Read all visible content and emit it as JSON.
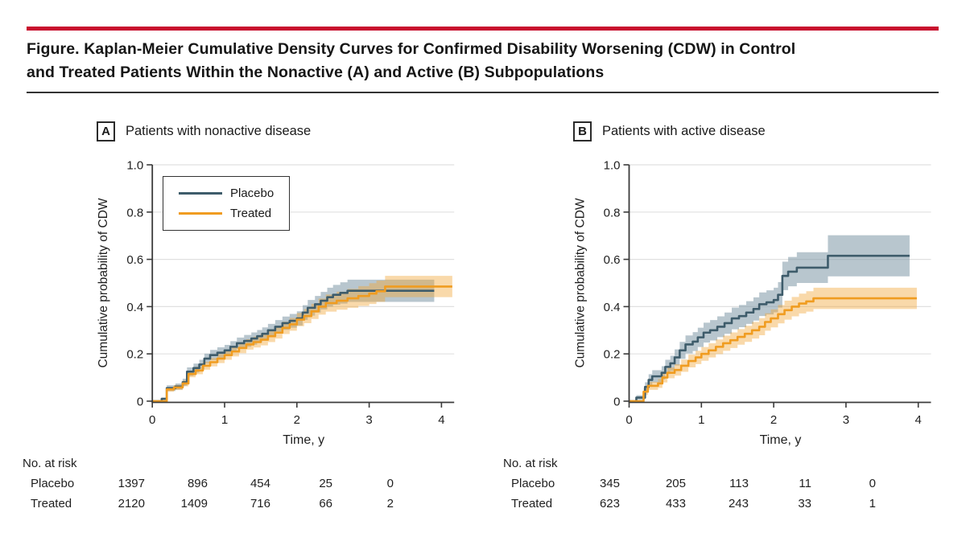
{
  "header": {
    "title_line1": "Figure. Kaplan-Meier Cumulative Density Curves for Confirmed Disability Worsening (CDW) in Control",
    "title_line2": "and Treated Patients Within the Nonactive (A) and Active (B) Subpopulations"
  },
  "colors": {
    "accent_red": "#C8102E",
    "placebo_line": "#3E5C6B",
    "placebo_band": "#7E97A5",
    "treated_line": "#F09C20",
    "treated_band": "#F0A535",
    "grid": "#E0E0E0",
    "axis": "#3B3B3B",
    "text": "#1F1F1F"
  },
  "legend": {
    "entries": [
      {
        "label": "Placebo",
        "series": "placebo"
      },
      {
        "label": "Treated",
        "series": "treated"
      }
    ]
  },
  "chart_data": [
    {
      "type": "line",
      "subtype": "kaplan-meier-step-with-confidence-bands",
      "panel_label": "A",
      "panel_title": "Patients with nonactive disease",
      "xlabel": "Time, y",
      "ylabel": "Cumulative probability of CDW",
      "xlim": [
        0,
        4.2
      ],
      "ylim": [
        0,
        1.0
      ],
      "x_ticks": [
        0,
        1,
        2,
        3,
        4
      ],
      "y_ticks": [
        0,
        0.2,
        0.4,
        0.6,
        0.8,
        1.0
      ],
      "y_tick_labels": [
        "0",
        "0.2",
        "0.4",
        "0.6",
        "0.8",
        "1.0"
      ],
      "grid": true,
      "legend_position": "upper-left",
      "series": [
        {
          "name": "Placebo",
          "color_key": "placebo",
          "steps": [
            [
              0,
              0,
              0
            ],
            [
              0.13,
              0.01,
              0.005
            ],
            [
              0.2,
              0.055,
              0.012
            ],
            [
              0.32,
              0.062,
              0.013
            ],
            [
              0.42,
              0.08,
              0.015
            ],
            [
              0.48,
              0.125,
              0.018
            ],
            [
              0.57,
              0.14,
              0.019
            ],
            [
              0.65,
              0.155,
              0.02
            ],
            [
              0.72,
              0.18,
              0.021
            ],
            [
              0.8,
              0.195,
              0.022
            ],
            [
              0.9,
              0.205,
              0.023
            ],
            [
              1.0,
              0.215,
              0.023
            ],
            [
              1.08,
              0.23,
              0.024
            ],
            [
              1.17,
              0.245,
              0.024
            ],
            [
              1.27,
              0.255,
              0.025
            ],
            [
              1.37,
              0.265,
              0.026
            ],
            [
              1.45,
              0.275,
              0.026
            ],
            [
              1.52,
              0.285,
              0.027
            ],
            [
              1.6,
              0.3,
              0.027
            ],
            [
              1.7,
              0.315,
              0.028
            ],
            [
              1.8,
              0.33,
              0.028
            ],
            [
              1.9,
              0.34,
              0.029
            ],
            [
              2.0,
              0.35,
              0.03
            ],
            [
              2.08,
              0.375,
              0.031
            ],
            [
              2.15,
              0.395,
              0.033
            ],
            [
              2.25,
              0.41,
              0.035
            ],
            [
              2.33,
              0.425,
              0.037
            ],
            [
              2.42,
              0.44,
              0.04
            ],
            [
              2.5,
              0.45,
              0.042
            ],
            [
              2.6,
              0.458,
              0.045
            ],
            [
              2.7,
              0.467,
              0.047
            ],
            [
              3.9,
              0.467,
              0.047
            ]
          ]
        },
        {
          "name": "Treated",
          "color_key": "treated",
          "steps": [
            [
              0,
              0,
              0
            ],
            [
              0.2,
              0.05,
              0.01
            ],
            [
              0.3,
              0.058,
              0.011
            ],
            [
              0.42,
              0.075,
              0.012
            ],
            [
              0.5,
              0.115,
              0.014
            ],
            [
              0.6,
              0.13,
              0.016
            ],
            [
              0.7,
              0.15,
              0.017
            ],
            [
              0.8,
              0.165,
              0.018
            ],
            [
              0.9,
              0.18,
              0.019
            ],
            [
              1.0,
              0.195,
              0.02
            ],
            [
              1.1,
              0.21,
              0.021
            ],
            [
              1.2,
              0.225,
              0.022
            ],
            [
              1.3,
              0.24,
              0.022
            ],
            [
              1.4,
              0.25,
              0.023
            ],
            [
              1.5,
              0.26,
              0.024
            ],
            [
              1.6,
              0.275,
              0.025
            ],
            [
              1.7,
              0.29,
              0.025
            ],
            [
              1.8,
              0.31,
              0.026
            ],
            [
              1.9,
              0.325,
              0.027
            ],
            [
              2.0,
              0.345,
              0.028
            ],
            [
              2.1,
              0.36,
              0.03
            ],
            [
              2.2,
              0.38,
              0.032
            ],
            [
              2.3,
              0.4,
              0.034
            ],
            [
              2.4,
              0.415,
              0.036
            ],
            [
              2.55,
              0.425,
              0.038
            ],
            [
              2.7,
              0.435,
              0.04
            ],
            [
              2.85,
              0.445,
              0.042
            ],
            [
              3.0,
              0.455,
              0.044
            ],
            [
              3.1,
              0.465,
              0.045
            ],
            [
              3.22,
              0.485,
              0.045
            ],
            [
              4.15,
              0.485,
              0.045
            ]
          ]
        }
      ],
      "risk_table": {
        "title": "No. at risk",
        "rows": [
          {
            "label": "Placebo",
            "values": [
              "1397",
              "896",
              "454",
              "25",
              "0"
            ]
          },
          {
            "label": "Treated",
            "values": [
              "2120",
              "1409",
              "716",
              "66",
              "2"
            ]
          }
        ]
      }
    },
    {
      "type": "line",
      "subtype": "kaplan-meier-step-with-confidence-bands",
      "panel_label": "B",
      "panel_title": "Patients with active disease",
      "xlabel": "Time, y",
      "ylabel": "Cumulative probability of CDW",
      "xlim": [
        0,
        4.2
      ],
      "ylim": [
        0,
        1.0
      ],
      "x_ticks": [
        0,
        1,
        2,
        3,
        4
      ],
      "y_ticks": [
        0,
        0.2,
        0.4,
        0.6,
        0.8,
        1.0
      ],
      "y_tick_labels": [
        "0",
        "0.2",
        "0.4",
        "0.6",
        "0.8",
        "1.0"
      ],
      "grid": true,
      "legend_position": "none",
      "series": [
        {
          "name": "Placebo",
          "color_key": "placebo",
          "steps": [
            [
              0,
              0,
              0
            ],
            [
              0.1,
              0.015,
              0.01
            ],
            [
              0.22,
              0.06,
              0.02
            ],
            [
              0.27,
              0.09,
              0.024
            ],
            [
              0.32,
              0.105,
              0.026
            ],
            [
              0.45,
              0.12,
              0.028
            ],
            [
              0.5,
              0.145,
              0.03
            ],
            [
              0.57,
              0.16,
              0.032
            ],
            [
              0.63,
              0.185,
              0.034
            ],
            [
              0.7,
              0.215,
              0.036
            ],
            [
              0.78,
              0.24,
              0.038
            ],
            [
              0.88,
              0.252,
              0.04
            ],
            [
              0.95,
              0.27,
              0.041
            ],
            [
              1.03,
              0.29,
              0.042
            ],
            [
              1.12,
              0.3,
              0.043
            ],
            [
              1.22,
              0.315,
              0.044
            ],
            [
              1.32,
              0.33,
              0.045
            ],
            [
              1.42,
              0.35,
              0.046
            ],
            [
              1.52,
              0.36,
              0.047
            ],
            [
              1.62,
              0.375,
              0.048
            ],
            [
              1.72,
              0.39,
              0.049
            ],
            [
              1.8,
              0.41,
              0.05
            ],
            [
              1.9,
              0.418,
              0.051
            ],
            [
              2.0,
              0.428,
              0.052
            ],
            [
              2.06,
              0.45,
              0.054
            ],
            [
              2.12,
              0.53,
              0.06
            ],
            [
              2.2,
              0.548,
              0.062
            ],
            [
              2.32,
              0.565,
              0.065
            ],
            [
              2.75,
              0.615,
              0.087
            ],
            [
              3.88,
              0.615,
              0.087
            ]
          ]
        },
        {
          "name": "Treated",
          "color_key": "treated",
          "steps": [
            [
              0,
              0,
              0
            ],
            [
              0.2,
              0.04,
              0.014
            ],
            [
              0.26,
              0.065,
              0.017
            ],
            [
              0.4,
              0.075,
              0.019
            ],
            [
              0.46,
              0.1,
              0.021
            ],
            [
              0.53,
              0.12,
              0.023
            ],
            [
              0.63,
              0.132,
              0.024
            ],
            [
              0.72,
              0.15,
              0.026
            ],
            [
              0.82,
              0.17,
              0.027
            ],
            [
              0.92,
              0.185,
              0.028
            ],
            [
              1.0,
              0.2,
              0.029
            ],
            [
              1.1,
              0.215,
              0.03
            ],
            [
              1.2,
              0.23,
              0.031
            ],
            [
              1.3,
              0.245,
              0.032
            ],
            [
              1.4,
              0.258,
              0.033
            ],
            [
              1.5,
              0.272,
              0.033
            ],
            [
              1.6,
              0.285,
              0.034
            ],
            [
              1.7,
              0.3,
              0.035
            ],
            [
              1.8,
              0.315,
              0.036
            ],
            [
              1.88,
              0.335,
              0.037
            ],
            [
              1.96,
              0.35,
              0.038
            ],
            [
              2.06,
              0.368,
              0.039
            ],
            [
              2.15,
              0.385,
              0.04
            ],
            [
              2.25,
              0.4,
              0.041
            ],
            [
              2.35,
              0.413,
              0.042
            ],
            [
              2.45,
              0.422,
              0.043
            ],
            [
              2.55,
              0.435,
              0.045
            ],
            [
              3.98,
              0.435,
              0.045
            ]
          ]
        }
      ],
      "risk_table": {
        "title": "No. at risk",
        "rows": [
          {
            "label": "Placebo",
            "values": [
              "345",
              "205",
              "113",
              "11",
              "0"
            ]
          },
          {
            "label": "Treated",
            "values": [
              "623",
              "433",
              "243",
              "33",
              "1"
            ]
          }
        ]
      }
    }
  ]
}
